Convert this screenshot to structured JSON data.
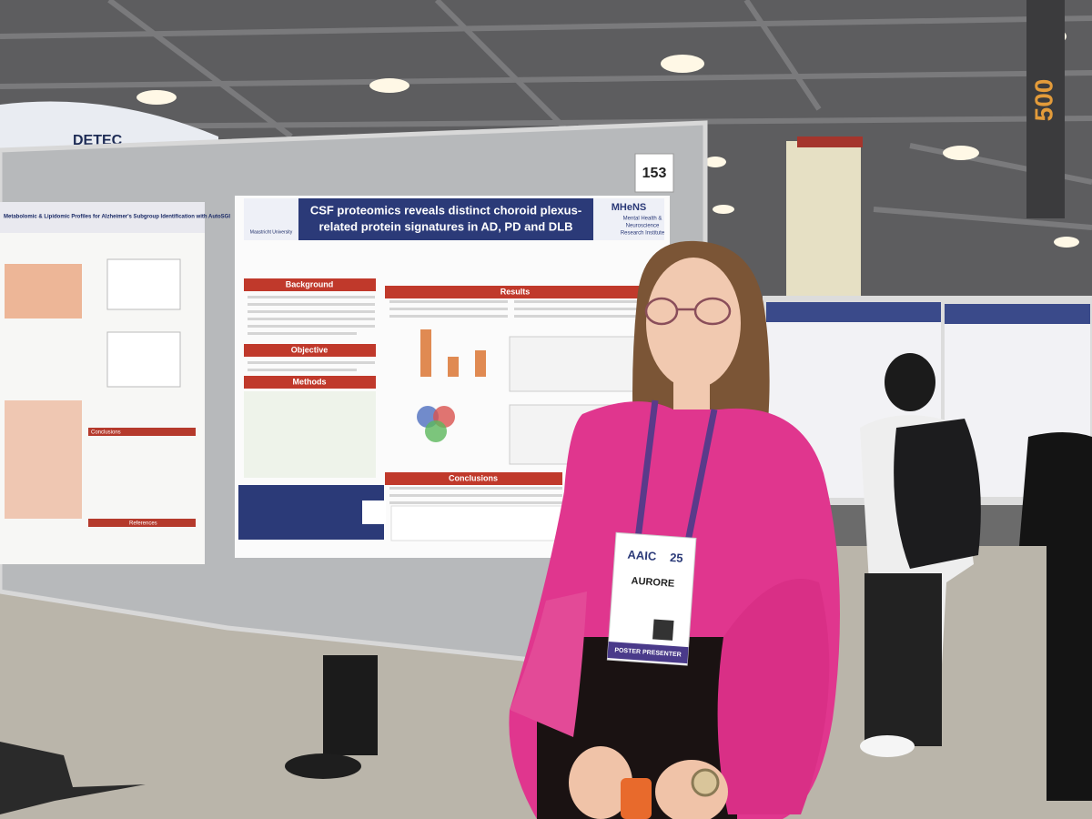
{
  "sign": {
    "number": "153"
  },
  "banner": {
    "text": "DETEC"
  },
  "pillar_sign": {
    "text": "500"
  },
  "poster": {
    "title_lines": [
      "CSF proteomics reveals distinct choroid plexus-",
      "related protein signatures in AD, PD and DLB"
    ],
    "institution": "Maastricht University",
    "institute": {
      "name": "MHeNS",
      "subtitle_lines": [
        "Mental Health &",
        "Neuroscience",
        "Research Institute"
      ]
    },
    "sections": [
      "Background",
      "Objective",
      "Methods",
      "Results",
      "Conclusions"
    ]
  },
  "left_poster": {
    "title": "Metabolomic & Lipidomic Profiles for Alzheimer's Subgroup Identification with AutoSGI",
    "sections": [
      "Conclusions",
      "References"
    ]
  },
  "badge": {
    "event": "AAIC",
    "year": "25",
    "name": "AURORE",
    "role": "POSTER PRESENTER"
  }
}
